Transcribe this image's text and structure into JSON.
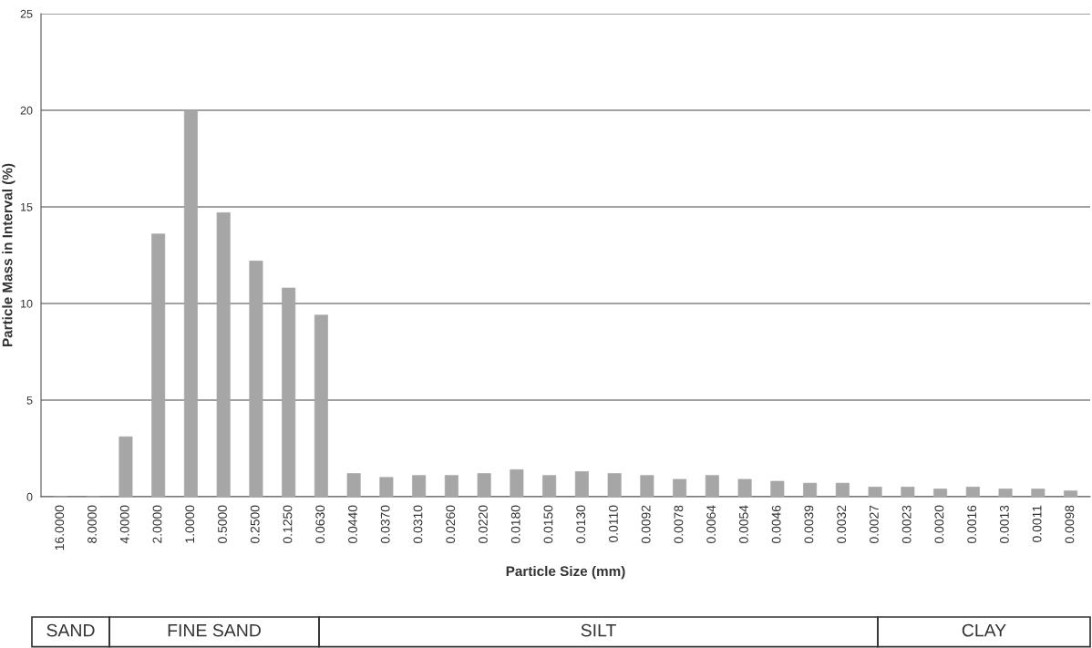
{
  "chart_data": {
    "type": "bar",
    "xlabel": "Particle Size (mm)",
    "ylabel": "Particle Mass in Interval (%)",
    "categories": [
      "16.0000",
      "8.0000",
      "4.0000",
      "2.0000",
      "1.0000",
      "0.5000",
      "0.2500",
      "0.1250",
      "0.0630",
      "0.0440",
      "0.0370",
      "0.0310",
      "0.0260",
      "0.0220",
      "0.0180",
      "0.0150",
      "0.0130",
      "0.0110",
      "0.0092",
      "0.0078",
      "0.0064",
      "0.0054",
      "0.0046",
      "0.0039",
      "0.0032",
      "0.0027",
      "0.0023",
      "0.0020",
      "0.0016",
      "0.0013",
      "0.0011",
      "0.0098"
    ],
    "values": [
      0,
      0,
      3.1,
      13.6,
      20.0,
      14.7,
      12.2,
      10.8,
      9.4,
      1.2,
      1.0,
      1.1,
      1.1,
      1.2,
      1.4,
      1.1,
      1.3,
      1.2,
      1.1,
      0.9,
      1.1,
      0.9,
      0.8,
      0.7,
      0.7,
      0.5,
      0.5,
      0.4,
      0.5,
      0.4,
      0.4,
      0.3
    ],
    "color": "#a6a6a6",
    "ylim": [
      0,
      25
    ],
    "yticks": [
      0,
      5,
      10,
      15,
      20,
      25
    ],
    "grid": "y",
    "annotations": [
      "SAND",
      "FINE SAND",
      "SILT",
      "CLAY"
    ]
  }
}
